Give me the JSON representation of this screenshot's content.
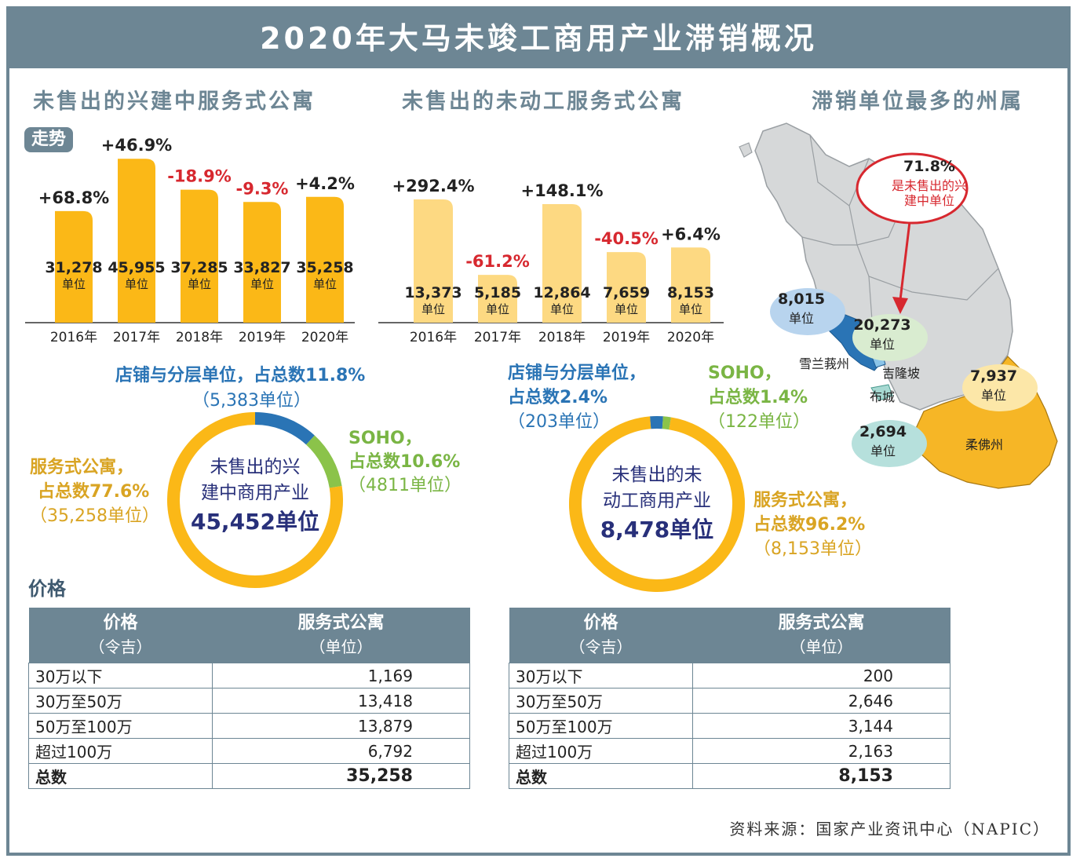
{
  "title": "2020年大马未竣工商用产业滞销概况",
  "sections": {
    "left": "未售出的兴建中服务式公寓",
    "middle": "未售出的未动工服务式公寓",
    "right": "滞销单位最多的州属"
  },
  "trend_badge": "走势",
  "unit_word": "单位",
  "chart_data": [
    {
      "type": "bar",
      "categories": [
        "2016年",
        "2017年",
        "2018年",
        "2019年",
        "2020年"
      ],
      "values": [
        31278,
        45955,
        37285,
        33827,
        35258
      ],
      "value_labels": [
        "31,278",
        "45,955",
        "37,285",
        "33,827",
        "35,258"
      ],
      "change_labels": [
        "+68.8%",
        "+46.9%",
        "-18.9%",
        "-9.3%",
        "+4.2%"
      ],
      "change_colors": [
        "#222222",
        "#222222",
        "#d7282f",
        "#d7282f",
        "#222222"
      ],
      "bar_color": "#fbb817",
      "ylim": [
        0,
        46000
      ]
    },
    {
      "type": "bar",
      "categories": [
        "2016年",
        "2017年",
        "2018年",
        "2019年",
        "2020年"
      ],
      "values": [
        13373,
        5185,
        12864,
        7659,
        8153
      ],
      "value_labels": [
        "13,373",
        "5,185",
        "12,864",
        "7,659",
        "8,153"
      ],
      "change_labels": [
        "+292.4%",
        "-61.2%",
        "+148.1%",
        "-40.5%",
        "+6.4%"
      ],
      "change_colors": [
        "#222222",
        "#d7282f",
        "#222222",
        "#d7282f",
        "#222222"
      ],
      "bar_color": "#fdd982",
      "ylim": [
        0,
        13373
      ]
    },
    {
      "type": "pie",
      "center_line1": "未售出的兴",
      "center_line2": "建中商用产业",
      "center_total": "45,452单位",
      "slices": [
        {
          "name": "店铺与分层单位，占总数11.8%",
          "detail": "（5,383单位）",
          "value": 5383,
          "color": "#2a74b5"
        },
        {
          "name": "SOHO，占总数10.6%",
          "detail": "（4811单位）",
          "value": 4811,
          "color": "#8bc34a"
        },
        {
          "name": "服务式公寓，占总数77.6%",
          "detail": "（35,258单位）",
          "value": 35258,
          "color": "#fbb817"
        }
      ]
    },
    {
      "type": "pie",
      "center_line1": "未售出的未",
      "center_line2": "动工商用产业",
      "center_total": "8,478单位",
      "slices": [
        {
          "name": "店铺与分层单位，占总数2.4%",
          "detail": "（203单位）",
          "value": 203,
          "color": "#2a74b5"
        },
        {
          "name": "SOHO，占总数1.4%",
          "detail": "（122单位）",
          "value": 122,
          "color": "#8bc34a"
        },
        {
          "name": "服务式公寓，占总数96.2%",
          "detail": "（8,153单位）",
          "value": 8153,
          "color": "#fbb817"
        }
      ]
    }
  ],
  "donut_labels": {
    "left": {
      "shop_line1": "店铺与分层单位，占总数11.8%",
      "shop_line2": "（5,383单位）",
      "soho_line1": "SOHO，",
      "soho_line2": "占总数10.6%",
      "soho_line3": "（4811单位）",
      "apt_line1": "服务式公寓，",
      "apt_line2": "占总数77.6%",
      "apt_line3": "（35,258单位）"
    },
    "right": {
      "shop_line1": "店铺与分层单位，",
      "shop_line2": "占总数2.4%",
      "shop_line3": "（203单位）",
      "soho_line1": "SOHO，",
      "soho_line2": "占总数1.4%",
      "soho_line3": "（122单位）",
      "apt_line1": "服务式公寓，",
      "apt_line2": "占总数96.2%",
      "apt_line3": "（8,153单位）"
    }
  },
  "map": {
    "callout_pct": "71.8%",
    "callout_line1": "是未售出的兴",
    "callout_line2": "建中单位",
    "bubbles": {
      "selangor": "8,015",
      "kl": "20,273",
      "putrajaya": "2,694",
      "johor": "7,937"
    },
    "state_labels": {
      "selangor": "雪兰莪州",
      "kl": "吉隆坡",
      "putrajaya": "布城",
      "johor": "柔佛州"
    },
    "colors": {
      "land": "#d6d8d9",
      "selangor": "#2a74b5",
      "johor": "#f6b626",
      "callout": "#d7282f"
    }
  },
  "price_heading": "价格",
  "tables": [
    {
      "col1": "价格",
      "col1_unit": "（令吉）",
      "col2": "服务式公寓",
      "col2_unit": "（单位）",
      "rows": [
        {
          "label": "30万以下",
          "value": "1,169"
        },
        {
          "label": "30万至50万",
          "value": "13,418"
        },
        {
          "label": "50万至100万",
          "value": "13,879"
        },
        {
          "label": "超过100万",
          "value": "6,792"
        }
      ],
      "total_label": "总数",
      "total_value": "35,258"
    },
    {
      "col1": "价格",
      "col1_unit": "（令吉）",
      "col2": "服务式公寓",
      "col2_unit": "（单位）",
      "rows": [
        {
          "label": "30万以下",
          "value": "200"
        },
        {
          "label": "30万至50万",
          "value": "2,646"
        },
        {
          "label": "50万至100万",
          "value": "3,144"
        },
        {
          "label": "超过100万",
          "value": "2,163"
        }
      ],
      "total_label": "总数",
      "total_value": "8,153"
    }
  ],
  "source": "资料来源：国家产业资讯中心（NAPIC）"
}
